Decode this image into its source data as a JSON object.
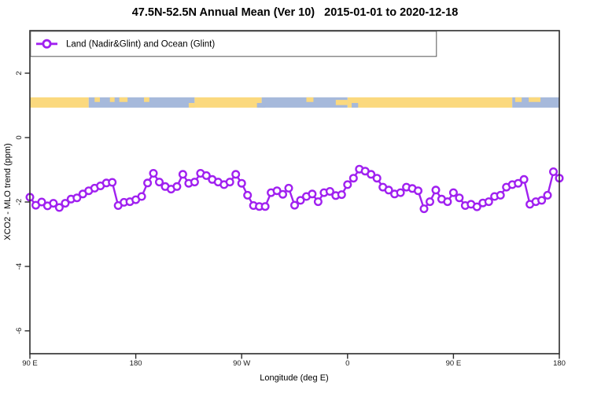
{
  "title": "47.5N-52.5N Annual Mean (Ver 10)   2015-01-01 to 2020-12-18",
  "legend": {
    "label": "Land (Nadir&Glint) and Ocean (Glint)"
  },
  "colors": {
    "series": "#A020F0",
    "marker_fill": "#ffffff",
    "land": "#FBD97E",
    "ocean": "#A6B9DB",
    "axis": "#2b2b2b"
  },
  "chart_data": {
    "type": "line",
    "title": "47.5N-52.5N Annual Mean (Ver 10)   2015-01-01 to 2020-12-18",
    "xlabel": "Longitude (deg E)",
    "ylabel": "XCO2 - MLO trend (ppm)",
    "xlim": [
      90,
      540
    ],
    "ylim": [
      -6.71,
      3.32
    ],
    "grid": false,
    "legend_position": "top-left",
    "x_ticks": [
      {
        "pos": 90,
        "label": "90 E"
      },
      {
        "pos": 180,
        "label": "180"
      },
      {
        "pos": 270,
        "label": "90 W"
      },
      {
        "pos": 360,
        "label": "0"
      },
      {
        "pos": 450,
        "label": "90 E"
      },
      {
        "pos": 540,
        "label": "180"
      }
    ],
    "y_ticks": [
      {
        "pos": 2,
        "label": "2"
      },
      {
        "pos": 0,
        "label": "0"
      },
      {
        "pos": -2,
        "label": "-2"
      },
      {
        "pos": -4,
        "label": "-4"
      },
      {
        "pos": -6,
        "label": "-6"
      }
    ],
    "series": [
      {
        "name": "Land (Nadir&Glint) and Ocean (Glint)",
        "marker": "open-circle",
        "x": [
          90,
          95,
          100,
          105,
          110,
          115,
          120,
          125,
          130,
          135,
          140,
          145,
          150,
          155,
          160,
          165,
          170,
          175,
          180,
          185,
          190,
          195,
          200,
          205,
          210,
          215,
          220,
          225,
          230,
          235,
          240,
          245,
          250,
          255,
          260,
          265,
          270,
          275,
          280,
          285,
          290,
          295,
          300,
          305,
          310,
          315,
          320,
          325,
          330,
          335,
          340,
          345,
          350,
          355,
          360,
          365,
          370,
          375,
          380,
          385,
          390,
          395,
          400,
          405,
          410,
          415,
          420,
          425,
          430,
          435,
          440,
          445,
          450,
          455,
          460,
          465,
          470,
          475,
          480,
          485,
          490,
          495,
          500,
          505,
          510,
          515,
          520,
          525,
          530,
          535,
          540
        ],
        "y": [
          -1.85,
          -2.1,
          -2.0,
          -2.12,
          -2.04,
          -2.17,
          -2.04,
          -1.91,
          -1.87,
          -1.75,
          -1.65,
          -1.57,
          -1.5,
          -1.41,
          -1.39,
          -2.11,
          -2.01,
          -1.99,
          -1.93,
          -1.83,
          -1.41,
          -1.11,
          -1.38,
          -1.52,
          -1.6,
          -1.52,
          -1.14,
          -1.42,
          -1.38,
          -1.11,
          -1.18,
          -1.3,
          -1.38,
          -1.46,
          -1.38,
          -1.14,
          -1.42,
          -1.79,
          -2.11,
          -2.14,
          -2.14,
          -1.71,
          -1.65,
          -1.76,
          -1.57,
          -2.1,
          -1.95,
          -1.83,
          -1.75,
          -1.99,
          -1.71,
          -1.67,
          -1.8,
          -1.77,
          -1.46,
          -1.26,
          -0.98,
          -1.04,
          -1.14,
          -1.26,
          -1.54,
          -1.63,
          -1.75,
          -1.71,
          -1.54,
          -1.58,
          -1.65,
          -2.21,
          -1.99,
          -1.63,
          -1.91,
          -1.99,
          -1.71,
          -1.87,
          -2.11,
          -2.07,
          -2.15,
          -2.03,
          -1.99,
          -1.83,
          -1.79,
          -1.54,
          -1.46,
          -1.42,
          -1.3,
          -2.07,
          -1.99,
          -1.95,
          -1.79,
          -1.06,
          -1.26
        ]
      }
    ],
    "surface_band": {
      "description": "land/ocean surface-type strip drawn near y=1",
      "y_range": [
        0.93,
        1.25
      ],
      "segments": [
        {
          "from": 90,
          "to": 140,
          "type": "land"
        },
        {
          "from": 140,
          "to": 230,
          "type": "ocean"
        },
        {
          "from": 230,
          "to": 287,
          "type": "land"
        },
        {
          "from": 287,
          "to": 360,
          "type": "ocean"
        },
        {
          "from": 360,
          "to": 500,
          "type": "land"
        },
        {
          "from": 500,
          "to": 540,
          "type": "ocean"
        }
      ],
      "speckles": [
        {
          "from": 145,
          "to": 149.5,
          "type": "land",
          "pos": "top"
        },
        {
          "from": 158,
          "to": 162,
          "type": "land",
          "pos": "top"
        },
        {
          "from": 166,
          "to": 173,
          "type": "land",
          "pos": "top"
        },
        {
          "from": 187,
          "to": 191.5,
          "type": "land",
          "pos": "top"
        },
        {
          "from": 225,
          "to": 230,
          "type": "land",
          "pos": "bottom"
        },
        {
          "from": 283,
          "to": 290,
          "type": "ocean",
          "pos": "bottom"
        },
        {
          "from": 325,
          "to": 331,
          "type": "land",
          "pos": "top"
        },
        {
          "from": 350,
          "to": 360,
          "type": "land",
          "pos": "mid"
        },
        {
          "from": 363.5,
          "to": 369,
          "type": "ocean",
          "pos": "bottom"
        },
        {
          "from": 502.5,
          "to": 508,
          "type": "land",
          "pos": "top"
        },
        {
          "from": 514,
          "to": 524,
          "type": "land",
          "pos": "top"
        }
      ]
    }
  }
}
